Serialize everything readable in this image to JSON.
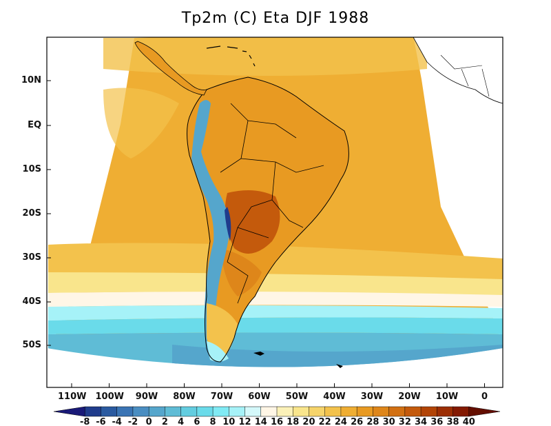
{
  "title": "Tp2m (C) Eta DJF 1988",
  "lat_labels": [
    "10N",
    "EQ",
    "10S",
    "20S",
    "30S",
    "40S",
    "50S"
  ],
  "lon_labels": [
    "110W",
    "100W",
    "90W",
    "80W",
    "70W",
    "60W",
    "50W",
    "40W",
    "30W",
    "20W",
    "10W",
    "0"
  ],
  "colorbar": {
    "labels": [
      "-8",
      "-6",
      "-4",
      "-2",
      "0",
      "2",
      "4",
      "6",
      "8",
      "10",
      "12",
      "14",
      "16",
      "18",
      "20",
      "22",
      "24",
      "26",
      "28",
      "30",
      "32",
      "34",
      "36",
      "38",
      "40"
    ],
    "colors": [
      "#1a1a78",
      "#203c8c",
      "#2a5aa0",
      "#3a74b4",
      "#4a8ec2",
      "#55a6cc",
      "#5fbcd6",
      "#63cde0",
      "#6adbea",
      "#80eaf4",
      "#a6f2f8",
      "#d4f8fa",
      "#fff6e6",
      "#fbf1b8",
      "#f9e58c",
      "#f6d46a",
      "#f3c24c",
      "#efae33",
      "#e89a22",
      "#de861a",
      "#d27012",
      "#c45a0c",
      "#b24406",
      "#9c2e04",
      "#841a02",
      "#640e00"
    ]
  },
  "colors": {
    "ocean_warm": "#efae33",
    "ocean_mid": "#f3c24c",
    "land_hot": "#d27012",
    "andes_cold": "#55a6cc",
    "southern_cold": "#5fbcd6"
  }
}
